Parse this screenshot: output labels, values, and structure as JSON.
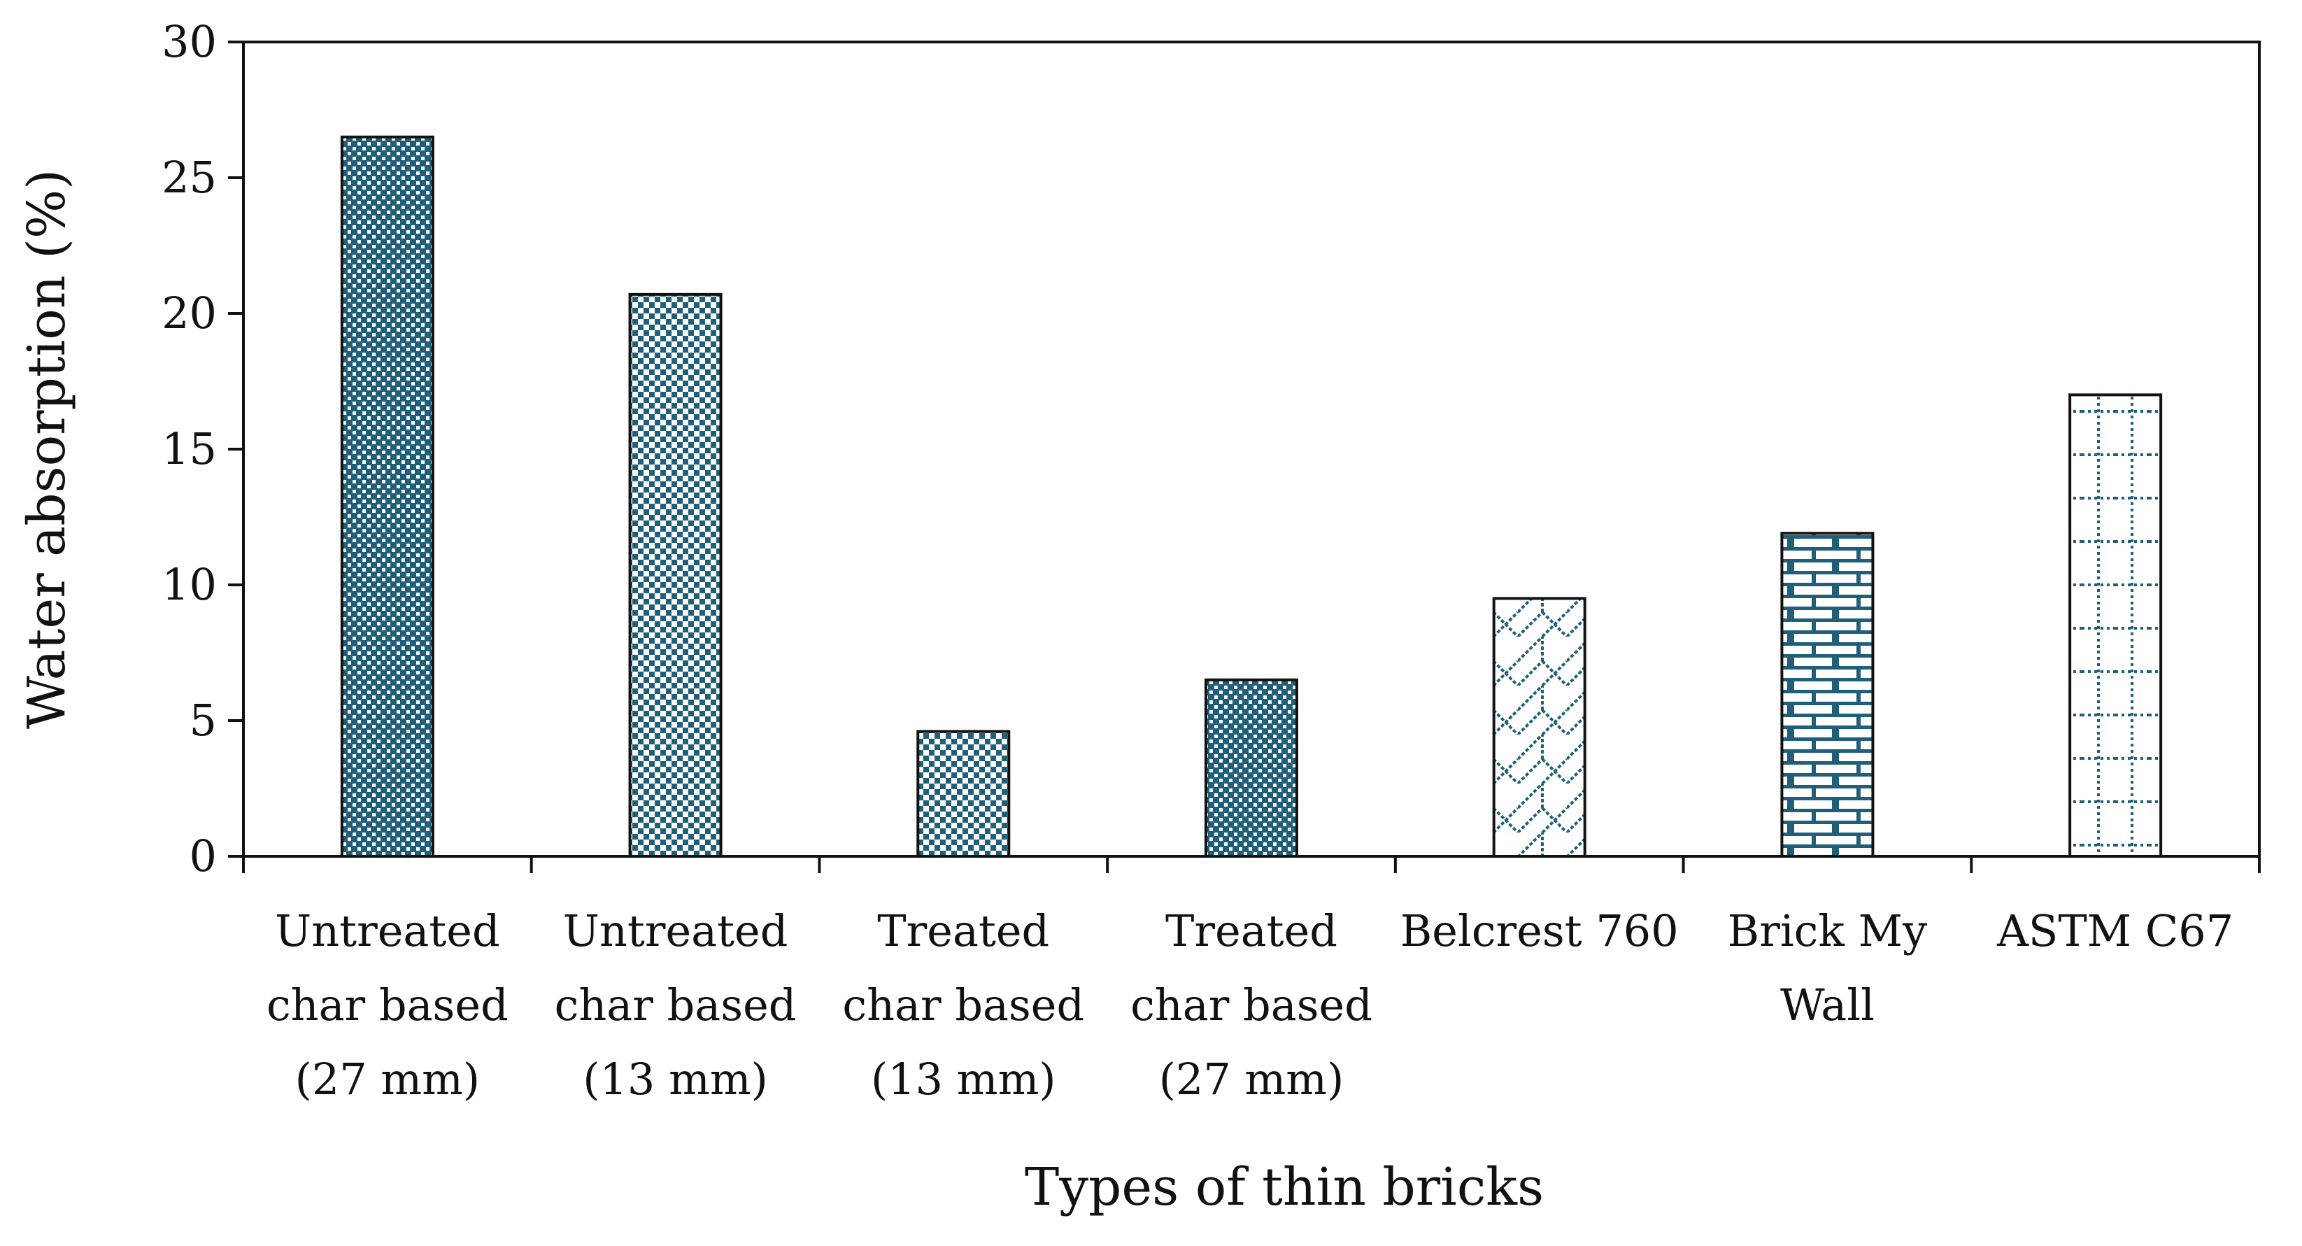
{
  "chart_data": {
    "type": "bar",
    "title": "",
    "xlabel": "Types of thin bricks",
    "ylabel": "Water absorption (%)",
    "ylim": [
      0,
      30
    ],
    "yticks": [
      "0",
      "5",
      "10",
      "15",
      "20",
      "25",
      "30"
    ],
    "yticks_values": [
      0,
      5,
      10,
      15,
      20,
      25,
      30
    ],
    "grid": false,
    "categories": [
      [
        "Untreated",
        "char based",
        "(27 mm)"
      ],
      [
        "Untreated",
        "char based",
        "(13 mm)"
      ],
      [
        "Treated",
        "char based",
        "(13 mm)"
      ],
      [
        "Treated",
        "char based",
        "(27 mm)"
      ],
      [
        "Belcrest 760"
      ],
      [
        "Brick My",
        "Wall"
      ],
      [
        "ASTM C67"
      ]
    ],
    "values": [
      26.5,
      20.7,
      4.6,
      6.5,
      9.5,
      11.9,
      17.0
    ],
    "patterns": [
      "checker-dense",
      "checker-sparse",
      "checker-sparse",
      "checker-dense",
      "diagonal-lattice",
      "brick",
      "dotted-grid"
    ],
    "accent_color": "#1f5f7a"
  }
}
